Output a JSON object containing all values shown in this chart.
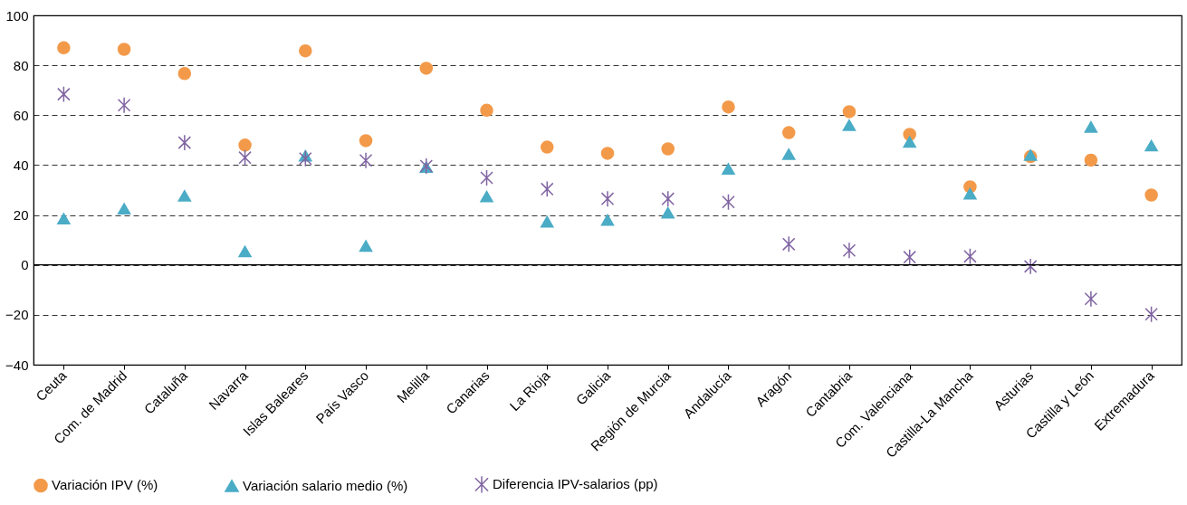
{
  "chart_data": {
    "type": "scatter",
    "categories": [
      "Ceuta",
      "Com. de Madrid",
      "Cataluña",
      "Navarra",
      "Islas Baleares",
      "País Vasco",
      "Melilla",
      "Canarias",
      "La Rioja",
      "Galicia",
      "Región de Murcia",
      "Andalucía",
      "Aragón",
      "Cantabria",
      "Com. Valenciana",
      "Castilla-La Mancha",
      "Asturias",
      "Castilla y León",
      "Extremadura"
    ],
    "series": [
      {
        "name": "Variación IPV (%)",
        "color": "#f39a4a",
        "marker": "circle",
        "values": [
          87,
          86.4,
          76.7,
          48,
          85.8,
          49.8,
          78.8,
          62,
          47.2,
          44.7,
          46.5,
          63.3,
          53,
          61.4,
          52.3,
          31.3,
          43.4,
          42,
          28
        ]
      },
      {
        "name": "Variación salario medio (%)",
        "color": "#4bacc6",
        "marker": "triangle",
        "values": [
          18.5,
          22.5,
          27.7,
          5.4,
          43.7,
          7.6,
          39.2,
          27.4,
          17.3,
          18,
          20.9,
          38.5,
          44.4,
          56,
          49.3,
          28.5,
          44,
          55.3,
          47.8
        ]
      },
      {
        "name": "Diferencia IPV-salarios (pp)",
        "color": "#8064a2",
        "marker": "cross",
        "values": [
          68.4,
          64,
          49,
          43,
          42.6,
          41.9,
          39.6,
          34.9,
          30.4,
          26.5,
          26.5,
          25.2,
          8.3,
          5.8,
          3.1,
          3.4,
          -0.6,
          -13.6,
          -19.8
        ]
      }
    ],
    "ylim": [
      -40,
      100
    ],
    "yticks": [
      -40,
      -20,
      0,
      20,
      40,
      60,
      80,
      100
    ],
    "ref_lines": [
      {
        "axis": "y",
        "value": 0,
        "color": "#000000",
        "line_style": "solid"
      }
    ],
    "grid": "y",
    "line_style": "dashed",
    "legend": "bottom"
  }
}
